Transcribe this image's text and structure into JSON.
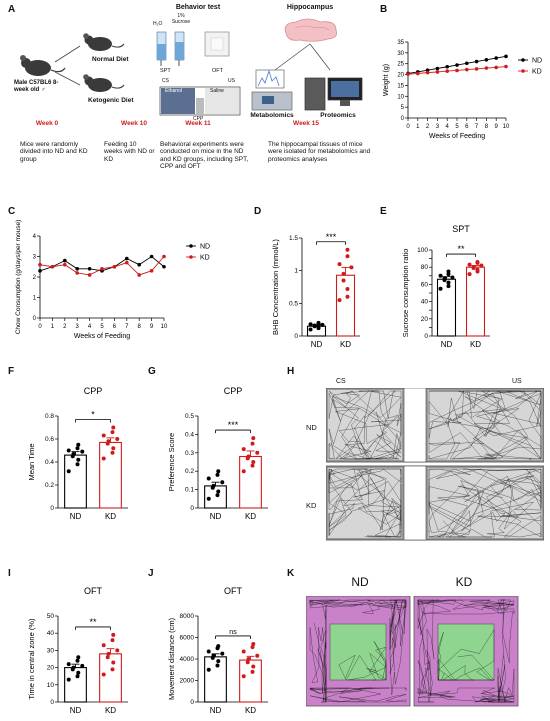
{
  "panel_letters": [
    "A",
    "B",
    "C",
    "D",
    "E",
    "F",
    "G",
    "H",
    "I",
    "J",
    "K"
  ],
  "panelA": {
    "behavior_test": "Behavior test",
    "h2o": "H₂O",
    "sucrose": "1% Sucrose",
    "spt": "SPT",
    "oft": "OFT",
    "cs": "CS",
    "us": "US",
    "ethanol": "Ethanol",
    "saline": "Saline",
    "cpp": "CPP",
    "hippocampus": "Hippocampus",
    "normal_diet": "Normal Diet",
    "ketogenic_diet": "Ketogenic Diet",
    "mouse_label": "Male C57BL6 8-week old ♂",
    "metabolomics": "Metabolomics",
    "proteomics": "Proteomics",
    "timeline": [
      {
        "week": "Week 0",
        "desc": "Mice were randomly divided into ND and KD group"
      },
      {
        "week": "Week 10",
        "desc": "Feeding 10 weeks with ND or KD"
      },
      {
        "week": "Week 11",
        "desc": "Behavioral experiments were conducted on mice in the ND and KD groups, including SPT, CPP and OFT"
      },
      {
        "week": "Week 15",
        "desc": "The hippocampal tissues of mice were isolated for metabolomics and proteomics analyses"
      }
    ]
  },
  "colors": {
    "nd": "#000000",
    "kd": "#d11b1b",
    "timeline": "#d11b1b",
    "open_field": "#c982c9",
    "center_zone": "#8fd48f",
    "cage": "#9a9a9a"
  },
  "chart_data": [
    {
      "panel": "B",
      "type": "line",
      "xlabel": "Weeks of Feeding",
      "ylabel": "Weight (g)",
      "x": [
        0,
        1,
        2,
        3,
        4,
        5,
        6,
        7,
        8,
        9,
        10
      ],
      "xlim": [
        0,
        10
      ],
      "ylim": [
        0,
        35
      ],
      "yticks": [
        0,
        5,
        10,
        15,
        20,
        25,
        30,
        35
      ],
      "series": [
        {
          "name": "ND",
          "values": [
            20.5,
            21.2,
            22.0,
            22.8,
            23.6,
            24.4,
            25.2,
            26.0,
            26.8,
            27.6,
            28.4
          ]
        },
        {
          "name": "KD",
          "values": [
            20.2,
            20.5,
            20.9,
            21.2,
            21.6,
            21.9,
            22.3,
            22.6,
            23.0,
            23.3,
            23.7
          ]
        }
      ]
    },
    {
      "panel": "C",
      "type": "line",
      "xlabel": "Weeks of Feeding",
      "ylabel": "Chow Consumption (g/days/per mouse)",
      "x": [
        0,
        1,
        2,
        3,
        4,
        5,
        6,
        7,
        8,
        9,
        10
      ],
      "xlim": [
        0,
        10
      ],
      "ylim": [
        0,
        4
      ],
      "yticks": [
        0,
        1,
        2,
        3,
        4
      ],
      "series": [
        {
          "name": "ND",
          "values": [
            2.3,
            2.5,
            2.8,
            2.4,
            2.4,
            2.3,
            2.5,
            2.9,
            2.6,
            3.0,
            2.5
          ]
        },
        {
          "name": "KD",
          "values": [
            2.6,
            2.5,
            2.6,
            2.2,
            2.1,
            2.4,
            2.5,
            2.7,
            2.1,
            2.3,
            3.0
          ]
        }
      ]
    },
    {
      "panel": "D",
      "type": "bar",
      "title": "",
      "ylabel": "BHB Concentration (mmol/L)",
      "categories": [
        "ND",
        "KD"
      ],
      "values": [
        0.15,
        0.93
      ],
      "sem": [
        0.02,
        0.12
      ],
      "ylim": [
        0,
        1.5
      ],
      "yticks": [
        0,
        0.5,
        1.0,
        1.5
      ],
      "significance": "***",
      "points": [
        [
          0.1,
          0.12,
          0.14,
          0.15,
          0.16,
          0.17,
          0.18,
          0.19,
          0.2
        ],
        [
          0.55,
          0.6,
          0.72,
          0.85,
          0.95,
          1.05,
          1.1,
          1.22,
          1.32
        ]
      ]
    },
    {
      "panel": "E",
      "type": "bar",
      "title": "SPT",
      "ylabel": "Sucrose consumption ratio",
      "categories": [
        "ND",
        "KD"
      ],
      "values": [
        66,
        80
      ],
      "sem": [
        3,
        2
      ],
      "ylim": [
        0,
        100
      ],
      "yticks": [
        0,
        10,
        20,
        30,
        40,
        50,
        60,
        70,
        80,
        90,
        100
      ],
      "significance": "**",
      "points": [
        [
          55,
          58,
          62,
          65,
          67,
          68,
          70,
          72,
          75
        ],
        [
          72,
          75,
          77,
          79,
          80,
          82,
          83,
          85,
          86
        ]
      ]
    },
    {
      "panel": "F",
      "type": "bar",
      "title": "CPP",
      "ylabel": "Mean Time",
      "categories": [
        "ND",
        "KD"
      ],
      "values": [
        0.46,
        0.57
      ],
      "sem": [
        0.03,
        0.04
      ],
      "ylim": [
        0,
        0.8
      ],
      "yticks": [
        0,
        0.2,
        0.4,
        0.6,
        0.8
      ],
      "significance": "*",
      "points": [
        [
          0.32,
          0.38,
          0.42,
          0.45,
          0.47,
          0.49,
          0.5,
          0.52,
          0.55
        ],
        [
          0.43,
          0.48,
          0.52,
          0.56,
          0.58,
          0.6,
          0.63,
          0.66,
          0.7
        ]
      ]
    },
    {
      "panel": "G",
      "type": "bar",
      "title": "CPP",
      "ylabel": "Preference Score",
      "categories": [
        "ND",
        "KD"
      ],
      "values": [
        0.12,
        0.28
      ],
      "sem": [
        0.02,
        0.03
      ],
      "ylim": [
        0,
        0.5
      ],
      "yticks": [
        0,
        0.1,
        0.2,
        0.3,
        0.4,
        0.5
      ],
      "significance": "***",
      "points": [
        [
          0.05,
          0.07,
          0.09,
          0.11,
          0.12,
          0.14,
          0.16,
          0.18,
          0.2
        ],
        [
          0.2,
          0.23,
          0.25,
          0.27,
          0.28,
          0.3,
          0.32,
          0.35,
          0.38
        ]
      ]
    },
    {
      "panel": "I",
      "type": "bar",
      "title": "OFT",
      "ylabel": "Time in central zone (%)",
      "categories": [
        "ND",
        "KD"
      ],
      "values": [
        20,
        28
      ],
      "sem": [
        2,
        3
      ],
      "ylim": [
        0,
        50
      ],
      "yticks": [
        0,
        10,
        20,
        30,
        40,
        50
      ],
      "significance": "**",
      "points": [
        [
          13,
          15,
          17,
          19,
          20,
          21,
          22,
          24,
          26
        ],
        [
          16,
          19,
          23,
          26,
          28,
          30,
          33,
          36,
          39
        ]
      ]
    },
    {
      "panel": "J",
      "type": "bar",
      "title": "OFT",
      "ylabel": "Movement distance (cm)",
      "categories": [
        "ND",
        "KD"
      ],
      "values": [
        4200,
        3900
      ],
      "sem": [
        280,
        350
      ],
      "ylim": [
        0,
        8000
      ],
      "yticks": [
        0,
        2000,
        4000,
        6000,
        8000
      ],
      "significance": "ns",
      "points": [
        [
          3000,
          3400,
          3800,
          4100,
          4300,
          4500,
          4700,
          5000,
          5200
        ],
        [
          2400,
          2800,
          3300,
          3700,
          4000,
          4300,
          4700,
          5100,
          5400
        ]
      ]
    }
  ],
  "panelH": {
    "cs": "CS",
    "us": "US",
    "rows": [
      "ND",
      "KD"
    ]
  },
  "panelK": {
    "groups": [
      "ND",
      "KD"
    ]
  }
}
